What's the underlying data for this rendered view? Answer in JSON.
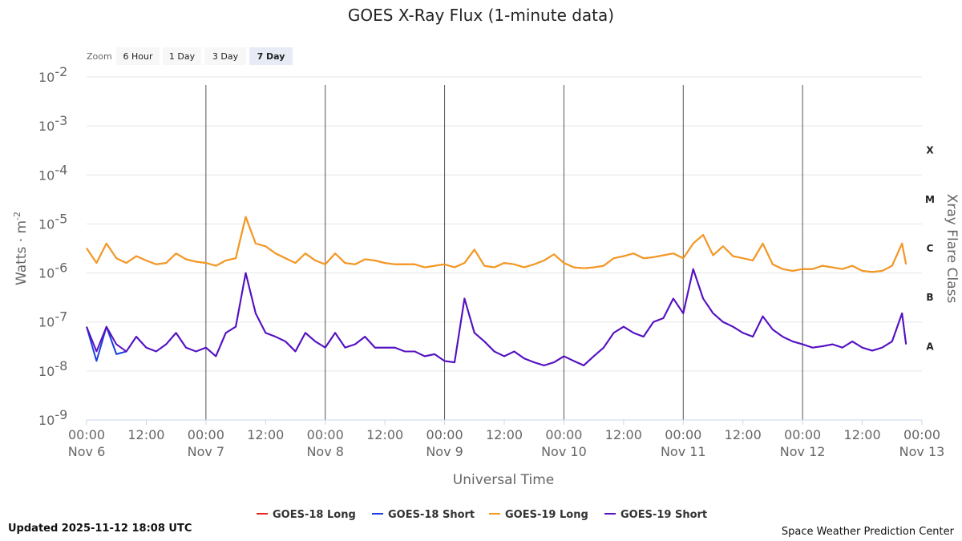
{
  "chart_data": {
    "type": "line",
    "title": "GOES X-Ray Flux (1-minute data)",
    "xlabel": "Universal Time",
    "ylabel": "Watts · m",
    "ylabel_sup": "-2",
    "right_axis_label": "Xray Flare Class",
    "y_scale": "log",
    "ylim": [
      1e-09,
      0.01
    ],
    "y_tick_base": "10",
    "y_tick_exponents": [
      "-2",
      "-3",
      "-4",
      "-5",
      "-6",
      "-7",
      "-8",
      "-9"
    ],
    "flare_classes": [
      "X",
      "M",
      "C",
      "B",
      "A"
    ],
    "x_range_hours": [
      0,
      168
    ],
    "x_tick_labels": [
      {
        "top": "00:00",
        "bottom": "Nov 6"
      },
      {
        "top": "12:00",
        "bottom": ""
      },
      {
        "top": "00:00",
        "bottom": "Nov 7"
      },
      {
        "top": "12:00",
        "bottom": ""
      },
      {
        "top": "00:00",
        "bottom": "Nov 8"
      },
      {
        "top": "12:00",
        "bottom": ""
      },
      {
        "top": "00:00",
        "bottom": "Nov 9"
      },
      {
        "top": "12:00",
        "bottom": ""
      },
      {
        "top": "00:00",
        "bottom": "Nov 10"
      },
      {
        "top": "12:00",
        "bottom": ""
      },
      {
        "top": "00:00",
        "bottom": "Nov 11"
      },
      {
        "top": "12:00",
        "bottom": ""
      },
      {
        "top": "00:00",
        "bottom": "Nov 12"
      },
      {
        "top": "12:00",
        "bottom": ""
      },
      {
        "top": "00:00",
        "bottom": "Nov 13"
      }
    ],
    "zoom": {
      "label": "Zoom",
      "options": [
        "6 Hour",
        "1 Day",
        "3 Day",
        "7 Day"
      ],
      "selected": "7 Day"
    },
    "series": [
      {
        "name": "GOES-18 Long",
        "color": "#e8261c",
        "x": [
          0,
          2,
          4,
          6,
          8,
          10,
          12,
          14,
          16,
          18,
          20,
          22,
          24,
          26,
          28,
          30,
          32,
          34,
          36,
          38,
          40,
          42,
          44,
          46,
          48,
          50,
          52,
          54,
          56,
          58,
          60,
          62,
          64,
          66,
          68,
          70,
          72,
          74,
          76,
          78,
          80,
          82,
          84,
          86,
          88,
          90,
          92,
          94,
          96,
          98,
          100,
          102,
          104,
          106,
          108,
          110,
          112,
          114,
          116,
          118,
          120,
          122,
          124,
          126,
          128,
          130,
          132,
          134,
          136,
          138,
          140,
          142,
          144,
          146,
          148,
          150,
          152,
          154,
          156,
          158,
          160,
          162,
          164,
          164.8
        ],
        "y": [
          3.2e-06,
          1.6e-06,
          4e-06,
          2e-06,
          1.6e-06,
          2.2e-06,
          1.8e-06,
          1.5e-06,
          1.6e-06,
          2.5e-06,
          1.9e-06,
          1.7e-06,
          1.6e-06,
          1.4e-06,
          1.8e-06,
          2e-06,
          1.4e-05,
          4e-06,
          3.5e-06,
          2.5e-06,
          2e-06,
          1.6e-06,
          2.5e-06,
          1.8e-06,
          1.5e-06,
          2.5e-06,
          1.6e-06,
          1.5e-06,
          1.9e-06,
          1.8e-06,
          1.6e-06,
          1.5e-06,
          1.5e-06,
          1.5e-06,
          1.3e-06,
          1.4e-06,
          1.5e-06,
          1.3e-06,
          1.6e-06,
          3e-06,
          1.4e-06,
          1.3e-06,
          1.6e-06,
          1.5e-06,
          1.3e-06,
          1.5e-06,
          1.8e-06,
          2.4e-06,
          1.6e-06,
          1.3e-06,
          1.25e-06,
          1.3e-06,
          1.4e-06,
          2e-06,
          2.2e-06,
          2.5e-06,
          2e-06,
          2.1e-06,
          2.3e-06,
          2.5e-06,
          2e-06,
          4e-06,
          6e-06,
          2.3e-06,
          3.5e-06,
          2.2e-06,
          2e-06,
          1.8e-06,
          4e-06,
          1.5e-06,
          1.2e-06,
          1.1e-06,
          1.2e-06,
          1.2e-06,
          1.4e-06,
          1.3e-06,
          1.2e-06,
          1.4e-06,
          1.1e-06,
          1.05e-06,
          1.1e-06,
          1.4e-06,
          4e-06,
          1.5e-06
        ]
      },
      {
        "name": "GOES-18 Short",
        "color": "#1a3ee0",
        "x": [
          0,
          2,
          4,
          6,
          8,
          10,
          12,
          14,
          16,
          18,
          20,
          22,
          24,
          26,
          28,
          30,
          32,
          34,
          36,
          38,
          40,
          42,
          44,
          46,
          48,
          50,
          52,
          54,
          56,
          58,
          60,
          62,
          64,
          66,
          68,
          70,
          72,
          74,
          76,
          78,
          80,
          82,
          84,
          86,
          88,
          90,
          92,
          94,
          96,
          98,
          100,
          102,
          104,
          106,
          108,
          110,
          112,
          114,
          116,
          118,
          120,
          122,
          124,
          126,
          128,
          130,
          132,
          134,
          136,
          138,
          140,
          142,
          144,
          146,
          148,
          150,
          152,
          154,
          156,
          158,
          160,
          162,
          164,
          164.8
        ],
        "y": [
          8e-08,
          1.6e-08,
          8e-08,
          2.2e-08,
          2.5e-08,
          5e-08,
          3e-08,
          2.5e-08,
          3.5e-08,
          6e-08,
          3e-08,
          2.5e-08,
          3e-08,
          2e-08,
          6e-08,
          8e-08,
          1e-06,
          1.5e-07,
          6e-08,
          5e-08,
          4e-08,
          2.5e-08,
          6e-08,
          4e-08,
          3e-08,
          6e-08,
          3e-08,
          3.5e-08,
          5e-08,
          3e-08,
          3e-08,
          3e-08,
          2.5e-08,
          2.5e-08,
          2e-08,
          2.2e-08,
          1.6e-08,
          1.5e-08,
          3e-07,
          6e-08,
          4e-08,
          2.5e-08,
          2e-08,
          2.5e-08,
          1.8e-08,
          1.5e-08,
          1.3e-08,
          1.5e-08,
          2e-08,
          1.6e-08,
          1.3e-08,
          2e-08,
          3e-08,
          6e-08,
          8e-08,
          6e-08,
          5e-08,
          1e-07,
          1.2e-07,
          3e-07,
          1.5e-07,
          1.2e-06,
          3e-07,
          1.5e-07,
          1e-07,
          8e-08,
          6e-08,
          5e-08,
          1.3e-07,
          7e-08,
          5e-08,
          4e-08,
          3.5e-08,
          3e-08,
          3.2e-08,
          3.5e-08,
          3e-08,
          4e-08,
          3e-08,
          2.6e-08,
          3e-08,
          4e-08,
          1.5e-07,
          3.5e-08
        ]
      },
      {
        "name": "GOES-19 Long",
        "color": "#f39c1e",
        "x": [
          0,
          2,
          4,
          6,
          8,
          10,
          12,
          14,
          16,
          18,
          20,
          22,
          24,
          26,
          28,
          30,
          32,
          34,
          36,
          38,
          40,
          42,
          44,
          46,
          48,
          50,
          52,
          54,
          56,
          58,
          60,
          62,
          64,
          66,
          68,
          70,
          72,
          74,
          76,
          78,
          80,
          82,
          84,
          86,
          88,
          90,
          92,
          94,
          96,
          98,
          100,
          102,
          104,
          106,
          108,
          110,
          112,
          114,
          116,
          118,
          120,
          122,
          124,
          126,
          128,
          130,
          132,
          134,
          136,
          138,
          140,
          142,
          144,
          146,
          148,
          150,
          152,
          154,
          156,
          158,
          160,
          162,
          164,
          164.8
        ],
        "y": [
          3.2e-06,
          1.6e-06,
          4e-06,
          2e-06,
          1.6e-06,
          2.2e-06,
          1.8e-06,
          1.5e-06,
          1.6e-06,
          2.5e-06,
          1.9e-06,
          1.7e-06,
          1.6e-06,
          1.4e-06,
          1.8e-06,
          2e-06,
          1.4e-05,
          4e-06,
          3.5e-06,
          2.5e-06,
          2e-06,
          1.6e-06,
          2.5e-06,
          1.8e-06,
          1.5e-06,
          2.5e-06,
          1.6e-06,
          1.5e-06,
          1.9e-06,
          1.8e-06,
          1.6e-06,
          1.5e-06,
          1.5e-06,
          1.5e-06,
          1.3e-06,
          1.4e-06,
          1.5e-06,
          1.3e-06,
          1.6e-06,
          3e-06,
          1.4e-06,
          1.3e-06,
          1.6e-06,
          1.5e-06,
          1.3e-06,
          1.5e-06,
          1.8e-06,
          2.4e-06,
          1.6e-06,
          1.3e-06,
          1.25e-06,
          1.3e-06,
          1.4e-06,
          2e-06,
          2.2e-06,
          2.5e-06,
          2e-06,
          2.1e-06,
          2.3e-06,
          2.5e-06,
          2e-06,
          4e-06,
          6e-06,
          2.3e-06,
          3.5e-06,
          2.2e-06,
          2e-06,
          1.8e-06,
          4e-06,
          1.5e-06,
          1.2e-06,
          1.1e-06,
          1.2e-06,
          1.2e-06,
          1.4e-06,
          1.3e-06,
          1.2e-06,
          1.4e-06,
          1.1e-06,
          1.05e-06,
          1.1e-06,
          1.4e-06,
          4e-06,
          1.5e-06
        ]
      },
      {
        "name": "GOES-19 Short",
        "color": "#5a0fc0",
        "x": [
          0,
          2,
          4,
          6,
          8,
          10,
          12,
          14,
          16,
          18,
          20,
          22,
          24,
          26,
          28,
          30,
          32,
          34,
          36,
          38,
          40,
          42,
          44,
          46,
          48,
          50,
          52,
          54,
          56,
          58,
          60,
          62,
          64,
          66,
          68,
          70,
          72,
          74,
          76,
          78,
          80,
          82,
          84,
          86,
          88,
          90,
          92,
          94,
          96,
          98,
          100,
          102,
          104,
          106,
          108,
          110,
          112,
          114,
          116,
          118,
          120,
          122,
          124,
          126,
          128,
          130,
          132,
          134,
          136,
          138,
          140,
          142,
          144,
          146,
          148,
          150,
          152,
          154,
          156,
          158,
          160,
          162,
          164,
          164.8
        ],
        "y": [
          8e-08,
          2.5e-08,
          8e-08,
          3.5e-08,
          2.5e-08,
          5e-08,
          3e-08,
          2.5e-08,
          3.5e-08,
          6e-08,
          3e-08,
          2.5e-08,
          3e-08,
          2e-08,
          6e-08,
          8e-08,
          1e-06,
          1.5e-07,
          6e-08,
          5e-08,
          4e-08,
          2.5e-08,
          6e-08,
          4e-08,
          3e-08,
          6e-08,
          3e-08,
          3.5e-08,
          5e-08,
          3e-08,
          3e-08,
          3e-08,
          2.5e-08,
          2.5e-08,
          2e-08,
          2.2e-08,
          1.6e-08,
          1.5e-08,
          3e-07,
          6e-08,
          4e-08,
          2.5e-08,
          2e-08,
          2.5e-08,
          1.8e-08,
          1.5e-08,
          1.3e-08,
          1.5e-08,
          2e-08,
          1.6e-08,
          1.3e-08,
          2e-08,
          3e-08,
          6e-08,
          8e-08,
          6e-08,
          5e-08,
          1e-07,
          1.2e-07,
          3e-07,
          1.5e-07,
          1.2e-06,
          3e-07,
          1.5e-07,
          1e-07,
          8e-08,
          6e-08,
          5e-08,
          1.3e-07,
          7e-08,
          5e-08,
          4e-08,
          3.5e-08,
          3e-08,
          3.2e-08,
          3.5e-08,
          3e-08,
          4e-08,
          3e-08,
          2.6e-08,
          3e-08,
          4e-08,
          1.5e-07,
          3.5e-08
        ]
      }
    ],
    "legend_position": "bottom-center",
    "grid": true
  },
  "footer": {
    "updated": "Updated 2025-11-12 18:08 UTC",
    "credit": "Space Weather Prediction Center"
  }
}
